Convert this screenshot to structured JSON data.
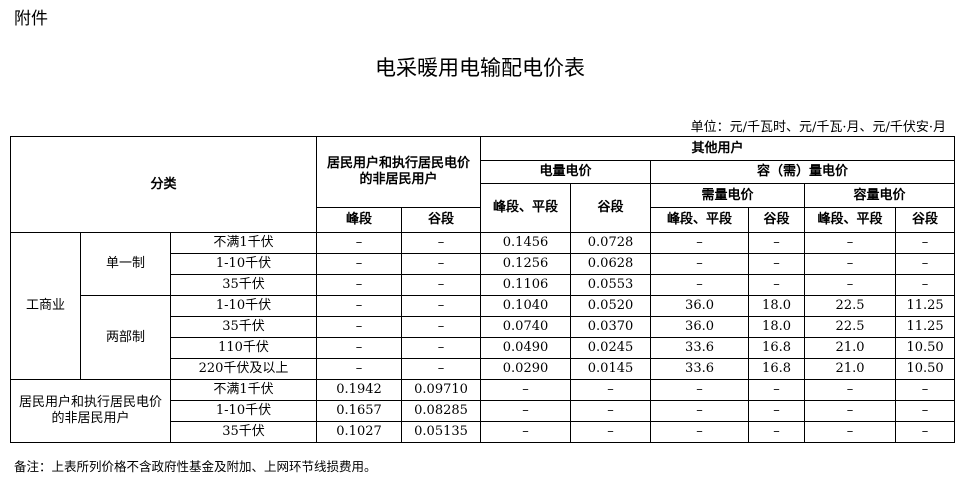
{
  "attachment_label": "附件",
  "title": "电采暖用电输配电价表",
  "unit": "单位：元/千瓦时、元/千瓦·月、元/千伏安·月",
  "header": {
    "category": "分类",
    "resident": "居民用户和执行居民电价的非居民用户",
    "peak": "峰段",
    "valley": "谷段",
    "other": "其他用户",
    "energy": "电量电价",
    "capacity_demand": "容（需）量电价",
    "demand": "需量电价",
    "capacity": "容量电价",
    "peak_flat": "峰段、平段",
    "peak_flat2": "峰段、平段"
  },
  "groups": [
    {
      "name": "工商业",
      "subgroups": [
        {
          "name": "单一制",
          "rows": [
            {
              "voltage": "不满1千伏",
              "values": [
                "–",
                "–",
                "0.1456",
                "0.0728",
                "–",
                "–",
                "–",
                "–"
              ]
            },
            {
              "voltage": "1-10千伏",
              "values": [
                "–",
                "–",
                "0.1256",
                "0.0628",
                "–",
                "–",
                "–",
                "–"
              ]
            },
            {
              "voltage": "35千伏",
              "values": [
                "–",
                "–",
                "0.1106",
                "0.0553",
                "–",
                "–",
                "–",
                "–"
              ]
            }
          ]
        },
        {
          "name": "两部制",
          "rows": [
            {
              "voltage": "1-10千伏",
              "values": [
                "–",
                "–",
                "0.1040",
                "0.0520",
                "36.0",
                "18.0",
                "22.5",
                "11.25"
              ]
            },
            {
              "voltage": "35千伏",
              "values": [
                "–",
                "–",
                "0.0740",
                "0.0370",
                "36.0",
                "18.0",
                "22.5",
                "11.25"
              ]
            },
            {
              "voltage": "110千伏",
              "values": [
                "–",
                "–",
                "0.0490",
                "0.0245",
                "33.6",
                "16.8",
                "21.0",
                "10.50"
              ]
            },
            {
              "voltage": "220千伏及以上",
              "values": [
                "–",
                "–",
                "0.0290",
                "0.0145",
                "33.6",
                "16.8",
                "21.0",
                "10.50"
              ]
            }
          ]
        }
      ]
    },
    {
      "name": "居民用户和执行居民电价的非居民用户",
      "subgroups": [
        {
          "name": "",
          "rows": [
            {
              "voltage": "不满1千伏",
              "values": [
                "0.1942",
                "0.09710",
                "–",
                "–",
                "–",
                "–",
                "–",
                "–"
              ]
            },
            {
              "voltage": "1-10千伏",
              "values": [
                "0.1657",
                "0.08285",
                "–",
                "–",
                "–",
                "–",
                "–",
                "–"
              ]
            },
            {
              "voltage": "35千伏",
              "values": [
                "0.1027",
                "0.05135",
                "–",
                "–",
                "–",
                "–",
                "–",
                "–"
              ]
            }
          ]
        }
      ]
    }
  ],
  "note": "备注：上表所列价格不含政府性基金及附加、上网环节线损费用。"
}
